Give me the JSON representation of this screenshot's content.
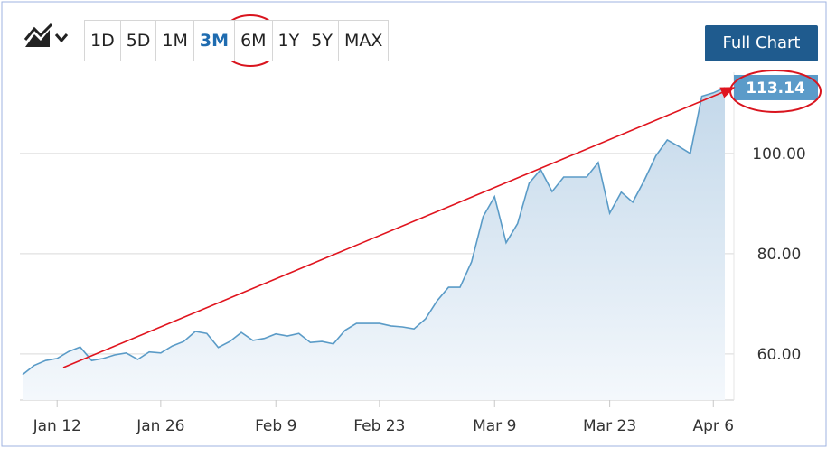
{
  "toolbar": {
    "ranges": [
      "1D",
      "5D",
      "1M",
      "3M",
      "6M",
      "1Y",
      "5Y",
      "MAX"
    ],
    "button": "Full Chart"
  },
  "chart_data": {
    "type": "area",
    "color": "#5a9bc7",
    "categories": [
      null,
      null,
      null,
      "Jan 12",
      null,
      null,
      null,
      null,
      null,
      null,
      null,
      null,
      "Jan 26",
      null,
      null,
      null,
      null,
      null,
      null,
      null,
      null,
      null,
      "Feb 9",
      null,
      null,
      null,
      null,
      null,
      null,
      null,
      null,
      "Feb 23",
      null,
      null,
      null,
      null,
      null,
      null,
      null,
      null,
      null,
      "Mar 9",
      null,
      null,
      null,
      null,
      null,
      null,
      null,
      null,
      null,
      "Mar 23",
      null,
      null,
      null,
      null,
      null,
      null,
      null,
      null,
      "Apr 6",
      null
    ],
    "values": [
      55.9,
      57.7,
      58.7,
      59.1,
      60.5,
      61.4,
      58.7,
      59.1,
      59.8,
      60.2,
      58.9,
      60.4,
      60.2,
      61.6,
      62.5,
      64.5,
      64.1,
      61.3,
      62.5,
      64.3,
      62.7,
      63.1,
      64.0,
      63.6,
      64.1,
      62.3,
      62.5,
      62.0,
      64.7,
      66.1,
      66.1,
      66.1,
      65.6,
      65.4,
      65.0,
      67.0,
      70.6,
      73.3,
      73.3,
      78.4,
      87.4,
      91.4,
      82.2,
      86.0,
      94.1,
      96.8,
      92.4,
      95.3,
      95.3,
      95.3,
      98.2,
      88.1,
      92.3,
      90.3,
      94.6,
      99.5,
      102.7,
      101.4,
      100.0,
      111.4,
      112.1,
      113.14
    ],
    "ylim": [
      50.8,
      116.2
    ],
    "yticks": [
      {
        "value": 60,
        "label": "60.00"
      },
      {
        "value": 80,
        "label": "80.00"
      },
      {
        "value": 100,
        "label": "100.00"
      }
    ],
    "grid": true
  }
}
